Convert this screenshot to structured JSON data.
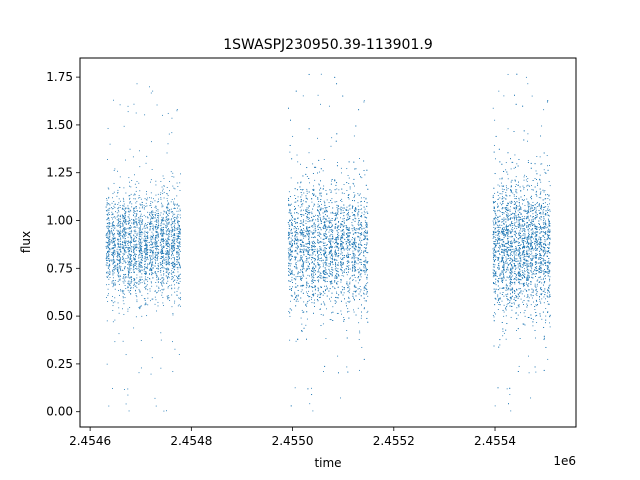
{
  "chart_data": {
    "type": "scatter",
    "title": "1SWASPJ230950.39-113901.9",
    "xlabel": "time",
    "ylabel": "flux",
    "x_offset_label": "1e6",
    "xlim": [
      2454580,
      2455560
    ],
    "ylim": [
      -0.08,
      1.85
    ],
    "x_ticks": [
      2454600,
      2454800,
      2455000,
      2455200,
      2455400
    ],
    "x_tick_labels": [
      "2.4546",
      "2.4548",
      "2.4550",
      "2.4552",
      "2.4554"
    ],
    "y_ticks": [
      0.0,
      0.25,
      0.5,
      0.75,
      1.0,
      1.25,
      1.5,
      1.75
    ],
    "y_tick_labels": [
      "0.00",
      "0.25",
      "0.50",
      "0.75",
      "1.00",
      "1.25",
      "1.50",
      "1.75"
    ],
    "grid": false,
    "legend": "none",
    "marker_color": "#1f77b4",
    "series": [
      {
        "segments": [
          {
            "x_start": 2454630,
            "x_end": 2454780,
            "center": 0.87,
            "spread": 0.13,
            "outlier_min": 0.0,
            "outlier_max": 1.72,
            "points": 2600
          },
          {
            "x_start": 2454990,
            "x_end": 2455150,
            "center": 0.86,
            "spread": 0.16,
            "outlier_min": 0.0,
            "outlier_max": 1.77,
            "points": 3200
          },
          {
            "x_start": 2455395,
            "x_end": 2455510,
            "center": 0.86,
            "spread": 0.17,
            "outlier_min": 0.0,
            "outlier_max": 1.77,
            "points": 3000
          }
        ]
      }
    ]
  }
}
